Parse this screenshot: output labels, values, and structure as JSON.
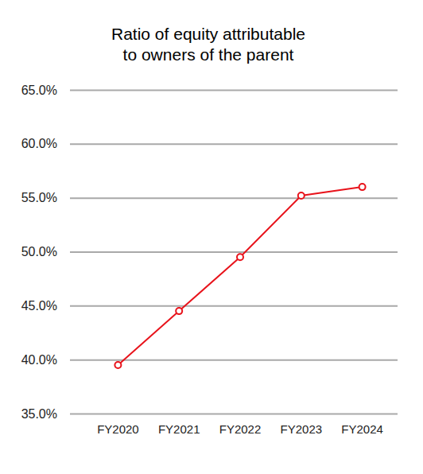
{
  "chart_data": {
    "type": "line",
    "title": [
      "Ratio of equity attributable",
      "to owners of the parent"
    ],
    "categories": [
      "FY2020",
      "FY2021",
      "FY2022",
      "FY2023",
      "FY2024"
    ],
    "values": [
      39.5,
      44.5,
      49.5,
      55.2,
      56.0
    ],
    "color": "#e8131b",
    "marker": "circle",
    "ylim": [
      35,
      65
    ],
    "yticks": [
      {
        "value": 35,
        "label": "35.0%"
      },
      {
        "value": 40,
        "label": "40.0%"
      },
      {
        "value": 45,
        "label": "45.0%"
      },
      {
        "value": 50,
        "label": "50.0%"
      },
      {
        "value": 55,
        "label": "55.0%"
      },
      {
        "value": 60,
        "label": "60.0%"
      },
      {
        "value": 65,
        "label": "65.0%"
      }
    ],
    "grid": true
  }
}
